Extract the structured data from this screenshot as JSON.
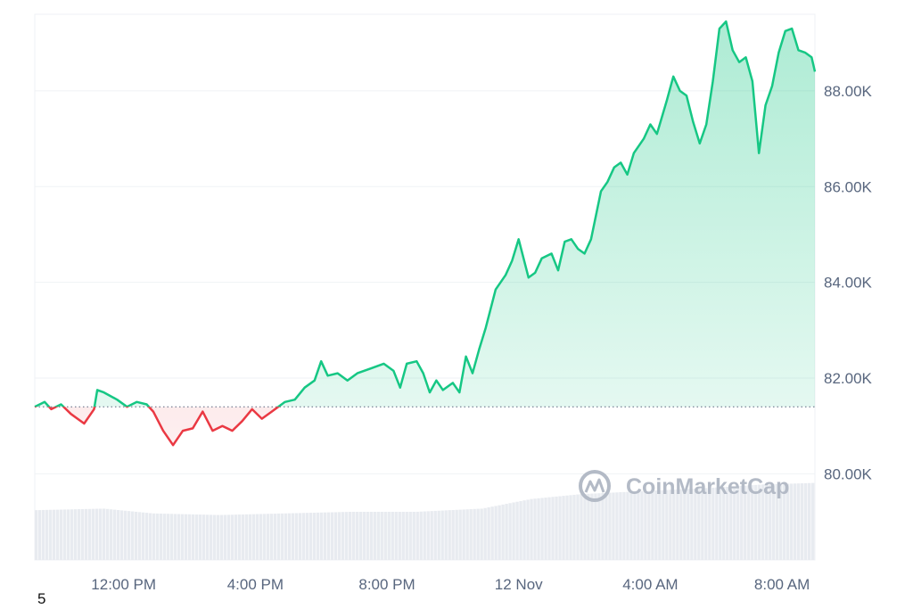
{
  "watermark": {
    "text": "CoinMarketCap"
  },
  "page_number": "5",
  "colors": {
    "up": "#16c784",
    "down": "#ea3943",
    "up_fill": "#16c784",
    "volume": "#e8ebf0",
    "grid": "#eff2f5",
    "axis_text": "#58667e"
  },
  "chart_data": {
    "type": "area",
    "title": "",
    "xlabel": "",
    "ylabel": "",
    "baseline": 81400,
    "ylim": [
      78200,
      89600
    ],
    "x_ticks": [
      {
        "label": "12:00 PM",
        "t": 2.1
      },
      {
        "label": "4:00 PM",
        "t": 6.1
      },
      {
        "label": "8:00 PM",
        "t": 10.1
      },
      {
        "label": "12 Nov",
        "t": 14.1
      },
      {
        "label": "4:00 AM",
        "t": 18.1
      },
      {
        "label": "8:00 AM",
        "t": 22.1
      }
    ],
    "y_ticks": [
      {
        "label": "80.00K",
        "value": 80000
      },
      {
        "label": "82.00K",
        "value": 82000
      },
      {
        "label": "84.00K",
        "value": 84000
      },
      {
        "label": "86.00K",
        "value": 86000
      },
      {
        "label": "88.00K",
        "value": 88000
      }
    ],
    "x_range": [
      -0.6,
      23.1
    ],
    "series": [
      {
        "price_points": [
          [
            -0.6,
            81400
          ],
          [
            -0.3,
            81500
          ],
          [
            -0.1,
            81350
          ],
          [
            0.2,
            81450
          ],
          [
            0.5,
            81250
          ],
          [
            0.9,
            81050
          ],
          [
            1.2,
            81350
          ],
          [
            1.3,
            81750
          ],
          [
            1.5,
            81700
          ],
          [
            1.9,
            81550
          ],
          [
            2.2,
            81400
          ],
          [
            2.5,
            81500
          ],
          [
            2.8,
            81450
          ],
          [
            3.0,
            81300
          ],
          [
            3.3,
            80900
          ],
          [
            3.6,
            80600
          ],
          [
            3.9,
            80900
          ],
          [
            4.2,
            80950
          ],
          [
            4.5,
            81300
          ],
          [
            4.8,
            80900
          ],
          [
            5.1,
            81000
          ],
          [
            5.4,
            80900
          ],
          [
            5.7,
            81100
          ],
          [
            6.0,
            81350
          ],
          [
            6.3,
            81150
          ],
          [
            6.6,
            81300
          ],
          [
            7.0,
            81500
          ],
          [
            7.3,
            81550
          ],
          [
            7.6,
            81800
          ],
          [
            7.9,
            81950
          ],
          [
            8.1,
            82350
          ],
          [
            8.3,
            82050
          ],
          [
            8.6,
            82100
          ],
          [
            8.9,
            81950
          ],
          [
            9.2,
            82100
          ],
          [
            9.6,
            82200
          ],
          [
            10.0,
            82300
          ],
          [
            10.3,
            82150
          ],
          [
            10.5,
            81800
          ],
          [
            10.7,
            82300
          ],
          [
            11.0,
            82350
          ],
          [
            11.2,
            82100
          ],
          [
            11.4,
            81700
          ],
          [
            11.6,
            81950
          ],
          [
            11.8,
            81750
          ],
          [
            12.1,
            81900
          ],
          [
            12.3,
            81700
          ],
          [
            12.5,
            82450
          ],
          [
            12.7,
            82100
          ],
          [
            12.9,
            82600
          ],
          [
            13.1,
            83050
          ],
          [
            13.4,
            83850
          ],
          [
            13.7,
            84150
          ],
          [
            13.9,
            84450
          ],
          [
            14.1,
            84900
          ],
          [
            14.4,
            84100
          ],
          [
            14.6,
            84200
          ],
          [
            14.8,
            84500
          ],
          [
            15.1,
            84600
          ],
          [
            15.3,
            84250
          ],
          [
            15.5,
            84850
          ],
          [
            15.7,
            84900
          ],
          [
            15.9,
            84700
          ],
          [
            16.1,
            84600
          ],
          [
            16.3,
            84900
          ],
          [
            16.6,
            85900
          ],
          [
            16.8,
            86100
          ],
          [
            17.0,
            86400
          ],
          [
            17.2,
            86500
          ],
          [
            17.4,
            86250
          ],
          [
            17.6,
            86700
          ],
          [
            17.9,
            87000
          ],
          [
            18.1,
            87300
          ],
          [
            18.3,
            87100
          ],
          [
            18.6,
            87800
          ],
          [
            18.8,
            88300
          ],
          [
            19.0,
            88000
          ],
          [
            19.2,
            87900
          ],
          [
            19.4,
            87350
          ],
          [
            19.6,
            86900
          ],
          [
            19.8,
            87300
          ],
          [
            20.0,
            88200
          ],
          [
            20.2,
            89300
          ],
          [
            20.4,
            89450
          ],
          [
            20.6,
            88850
          ],
          [
            20.8,
            88600
          ],
          [
            21.0,
            88700
          ],
          [
            21.2,
            88200
          ],
          [
            21.4,
            86700
          ],
          [
            21.6,
            87700
          ],
          [
            21.8,
            88100
          ],
          [
            22.0,
            88800
          ],
          [
            22.2,
            89250
          ],
          [
            22.4,
            89300
          ],
          [
            22.6,
            88850
          ],
          [
            22.8,
            88800
          ],
          [
            23.0,
            88700
          ],
          [
            23.1,
            88400
          ]
        ]
      }
    ],
    "volume_points": [
      [
        -0.6,
        0.31
      ],
      [
        1.5,
        0.32
      ],
      [
        3.0,
        0.29
      ],
      [
        5.0,
        0.28
      ],
      [
        7.0,
        0.29
      ],
      [
        9.0,
        0.3
      ],
      [
        11.0,
        0.3
      ],
      [
        13.0,
        0.32
      ],
      [
        14.5,
        0.38
      ],
      [
        16.0,
        0.41
      ],
      [
        18.0,
        0.43
      ],
      [
        20.0,
        0.45
      ],
      [
        21.5,
        0.47
      ],
      [
        23.1,
        0.48
      ]
    ]
  }
}
